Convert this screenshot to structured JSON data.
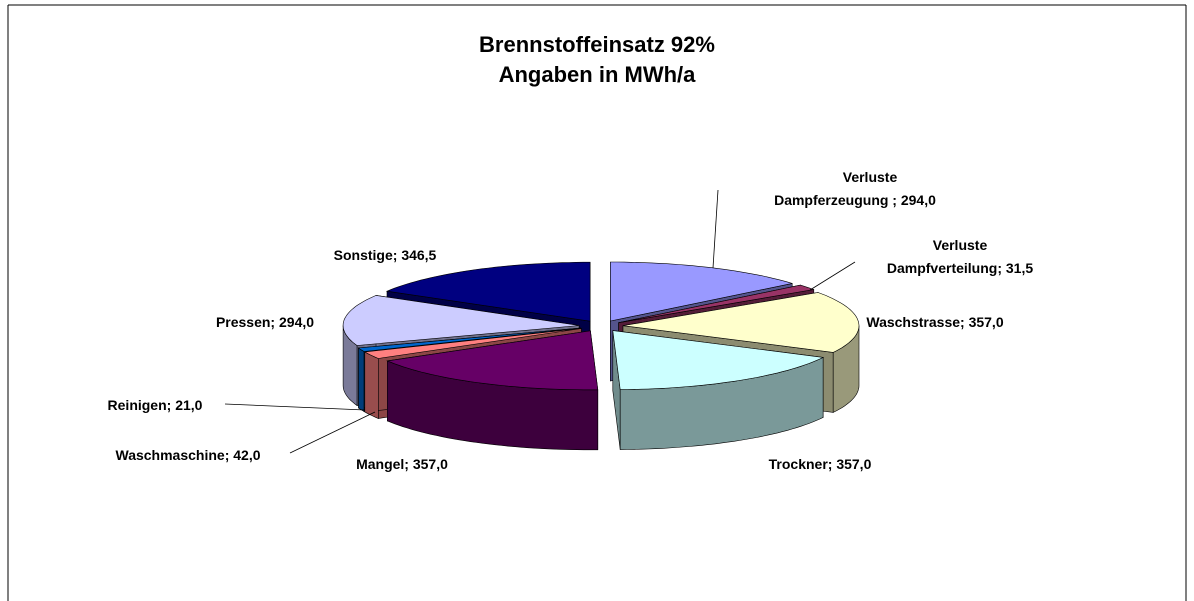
{
  "chart_data": {
    "type": "pie3d",
    "title": "Brennstoffeinsatz 92%",
    "subtitle": "Angaben in MWh/a",
    "categories": [
      "Verluste Dampferzeugung ;",
      "Verluste Dampfverteilung;",
      "Waschstrasse;",
      "Trockner;",
      "Mangel;",
      "Waschmaschine;",
      "Reinigen;",
      "Pressen;",
      "Sonstige;"
    ],
    "values": [
      294,
      31.5,
      357,
      357,
      357,
      42,
      21,
      294,
      346.5
    ],
    "value_labels": [
      "294,0",
      "31,5",
      "357,0",
      "357,0",
      "357,0",
      "42,0",
      "21,0",
      "294,0",
      "346,5"
    ],
    "colors": [
      "#9999ff",
      "#993366",
      "#ffffcc",
      "#ccffff",
      "#660066",
      "#ff8080",
      "#0066cc",
      "#ccccff",
      "#000080"
    ]
  }
}
